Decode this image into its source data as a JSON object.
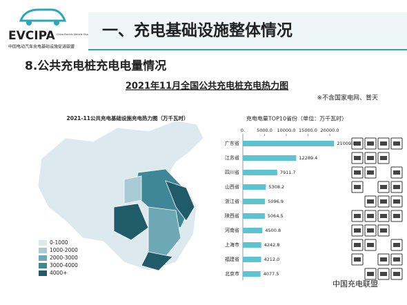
{
  "header": {
    "logo": "EVCIPA",
    "logo_en": "China Electric Vehicle Charging Infrastructure Promotion Alliance",
    "logo_cn": "中国电动汽车充电基础设施促进联盟",
    "title": "一、充电基础设施整体情况"
  },
  "section": "8.公共充电桩充电电量情况",
  "subtitle": "2021年11月全国公共充电桩充电热力图",
  "note": "※不含国家电网、普天",
  "map": {
    "title": "2021-11公共充电基础设施充电热力图（万千瓦时）",
    "legend": [
      {
        "label": "0-1000",
        "color": "#dce9ee"
      },
      {
        "label": "1000-2000",
        "color": "#a9cbd5"
      },
      {
        "label": "2000-3000",
        "color": "#6ea8b7"
      },
      {
        "label": "3000-4000",
        "color": "#3f8797"
      },
      {
        "label": "4000+",
        "color": "#1f5b69"
      }
    ]
  },
  "watermark": "中国充电联盟",
  "chart_data": {
    "type": "bar",
    "orientation": "horizontal",
    "title": "充电电量TOP10省份（单位：万千瓦时）",
    "categories": [
      "广东省",
      "江苏省",
      "四川省",
      "山西省",
      "浙江省",
      "陕西省",
      "河南省",
      "上海市",
      "福建省",
      "北京市"
    ],
    "values": [
      21009.8,
      12289.4,
      7911.7,
      5308.2,
      5096.9,
      5064.5,
      4500.8,
      4242.8,
      4212.0,
      4077.5
    ],
    "value_labels": [
      "21009.8",
      "12289.4",
      "7911.7",
      "5308.2",
      "5096.9",
      "5064.5",
      "4500.8",
      "4242.8",
      "4212.0",
      "4077.5"
    ],
    "color": "#5ec3d0",
    "xlim": [
      0,
      22000
    ],
    "xticks": [
      {
        "value": 0,
        "label": "0."
      },
      {
        "value": 5000,
        "label": "5000.0"
      },
      {
        "value": 10000,
        "label": "10000.0"
      },
      {
        "value": 15000,
        "label": "15000.0"
      },
      {
        "value": 20000,
        "label": "20000.0"
      }
    ]
  }
}
